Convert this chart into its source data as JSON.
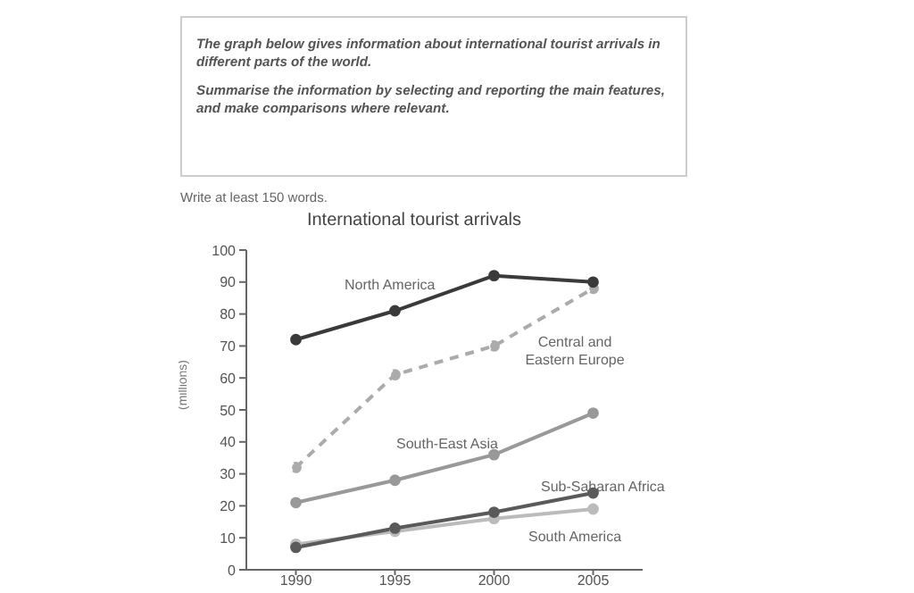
{
  "chart_data": {
    "type": "line",
    "title": "International tourist arrivals",
    "ylabel": "(millions)",
    "annotations": [
      "The graph below gives information about international tourist arrivals in different parts of the world.",
      "Summarise the information by selecting and reporting the main features, and make comparisons where relevant.",
      "Write at least 150 words."
    ],
    "x": [
      1990,
      1995,
      2000,
      2005
    ],
    "xlim": [
      1987.5,
      2007.5
    ],
    "xticks": [
      1990,
      1995,
      2000,
      2005
    ],
    "ylim": [
      0,
      100
    ],
    "yticks": [
      0,
      10,
      20,
      30,
      40,
      50,
      60,
      70,
      80,
      90,
      100
    ],
    "grid": false,
    "legend": false,
    "marker": "circle",
    "series": [
      {
        "name": "North America",
        "color": "#3a3a3a",
        "values": [
          72,
          81,
          92,
          90
        ]
      },
      {
        "name": "Central and Eastern Europe",
        "color": "#ababab",
        "line_style": "dashed",
        "values": [
          32,
          61,
          70,
          88
        ]
      },
      {
        "name": "South-East Asia",
        "color": "#999999",
        "values": [
          21,
          28,
          36,
          49
        ]
      },
      {
        "name": "Sub-Saharan Africa",
        "color": "#5a5a5a",
        "values": [
          7,
          13,
          18,
          24
        ]
      },
      {
        "name": "South America",
        "color": "#bbbbbb",
        "values": [
          8,
          12,
          16,
          19
        ]
      }
    ]
  }
}
